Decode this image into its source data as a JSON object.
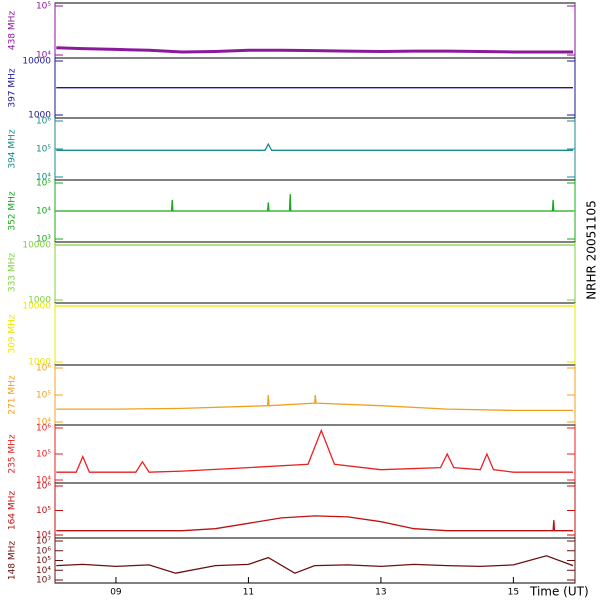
{
  "side_label": "NRHR 20051105",
  "chart_data": [
    {
      "type": "line",
      "name": "438 MHz",
      "color": "#8b1a9b",
      "log_scale": true,
      "ylim": [
        10000,
        100000
      ],
      "yticks": [
        {
          "value": 10000,
          "label": "10⁴"
        },
        {
          "value": 100000,
          "label": "10⁵"
        }
      ],
      "xlim": [
        8.08,
        15.93
      ],
      "x": [
        8.1,
        8.5,
        9,
        9.5,
        10,
        10.5,
        11,
        11.3,
        11.5,
        12,
        12.5,
        13,
        13.5,
        14,
        14.5,
        15,
        15.5,
        15.9
      ],
      "values": [
        14000,
        13500,
        13000,
        12500,
        11500,
        11800,
        12500,
        12500,
        12500,
        12300,
        12000,
        11800,
        12000,
        12000,
        11800,
        11500,
        11500,
        11500
      ]
    },
    {
      "type": "line",
      "name": "397 MHz",
      "color": "#1a1a9b",
      "log_scale": true,
      "ylim": [
        1000,
        10000
      ],
      "yticks": [
        1000,
        10000
      ],
      "xlim": [
        8.08,
        15.93
      ],
      "x": [
        8.1,
        15.9
      ],
      "values": [
        3200,
        3200
      ]
    },
    {
      "type": "line",
      "name": "394 MHz",
      "color": "#1a8b8b",
      "log_scale": true,
      "ylim": [
        10000,
        1000000
      ],
      "yticks": [
        {
          "value": 10000,
          "label": "10⁴"
        },
        {
          "value": 100000,
          "label": "10⁵"
        },
        {
          "value": 1000000,
          "label": "10⁶"
        }
      ],
      "xlim": [
        8.08,
        15.93
      ],
      "x": [
        8.1,
        9,
        10,
        11,
        11.25,
        11.3,
        11.35,
        12,
        13,
        14,
        15,
        15.9
      ],
      "values": [
        90000,
        90000,
        90000,
        90000,
        90000,
        150000,
        90000,
        90000,
        90000,
        90000,
        90000,
        90000
      ]
    },
    {
      "type": "line",
      "name": "352 MHz",
      "color": "#1aa81a",
      "log_scale": true,
      "ylim": [
        1000,
        100000
      ],
      "yticks": [
        {
          "value": 1000,
          "label": "10³"
        },
        {
          "value": 10000,
          "label": "10⁴"
        },
        {
          "value": 100000,
          "label": "10⁵"
        }
      ],
      "xlim": [
        8.08,
        15.93
      ],
      "x": [
        8.1,
        9.84,
        9.85,
        9.86,
        11.29,
        11.3,
        11.31,
        11.62,
        11.63,
        11.64,
        15.59,
        15.6,
        15.61,
        15.9
      ],
      "values": [
        10000,
        10000,
        25000,
        10000,
        10000,
        20000,
        10000,
        10000,
        40000,
        10000,
        10000,
        25000,
        10000,
        10000
      ]
    },
    {
      "type": "line",
      "name": "333 MHz",
      "color": "#7fd13b",
      "log_scale": true,
      "ylim": [
        1000,
        10000
      ],
      "yticks": [
        1000,
        10000
      ],
      "xlim": [
        8.08,
        15.93
      ],
      "x": [
        8.1,
        15.9
      ],
      "values": [
        10000,
        10000
      ]
    },
    {
      "type": "line",
      "name": "309 MHz",
      "color": "#e8e800",
      "log_scale": true,
      "ylim": [
        1000,
        10000
      ],
      "yticks": [
        1000,
        10000
      ],
      "xlim": [
        8.08,
        15.93
      ],
      "x": [
        8.1,
        15.9
      ],
      "values": [
        10000,
        10000
      ]
    },
    {
      "type": "line",
      "name": "271 MHz",
      "color": "#f0a020",
      "log_scale": true,
      "ylim": [
        10000,
        1000000
      ],
      "yticks": [
        {
          "value": 10000,
          "label": "10⁴"
        },
        {
          "value": 100000,
          "label": "10⁵"
        },
        {
          "value": 1000000,
          "label": "10⁶"
        }
      ],
      "xlim": [
        8.08,
        15.93
      ],
      "x": [
        8.1,
        9,
        10,
        11,
        11.29,
        11.3,
        11.31,
        12,
        12.01,
        12.02,
        13,
        14,
        15,
        15.9
      ],
      "values": [
        30000,
        30000,
        32000,
        38000,
        40000,
        100000,
        40000,
        50000,
        100000,
        50000,
        40000,
        30000,
        27000,
        27000
      ]
    },
    {
      "type": "line",
      "name": "235 MHz",
      "color": "#e82020",
      "log_scale": true,
      "ylim": [
        10000,
        1000000
      ],
      "yticks": [
        {
          "value": 10000,
          "label": "10⁴"
        },
        {
          "value": 100000,
          "label": "10⁵"
        },
        {
          "value": 1000000,
          "label": "10⁶"
        }
      ],
      "xlim": [
        8.08,
        15.93
      ],
      "x": [
        8.1,
        8.4,
        8.5,
        8.6,
        9.3,
        9.4,
        9.5,
        10,
        11,
        11.9,
        12.1,
        12.3,
        13,
        13.9,
        14,
        14.1,
        14.5,
        14.6,
        14.7,
        15,
        15.9
      ],
      "values": [
        20000,
        20000,
        80000,
        20000,
        20000,
        50000,
        20000,
        22000,
        30000,
        40000,
        800000,
        40000,
        25000,
        30000,
        100000,
        30000,
        25000,
        100000,
        25000,
        20000,
        20000
      ]
    },
    {
      "type": "line",
      "name": "164 MHz",
      "color": "#c01010",
      "log_scale": true,
      "ylim": [
        10000,
        1000000
      ],
      "yticks": [
        {
          "value": 10000,
          "label": "10⁴"
        },
        {
          "value": 100000,
          "label": "10⁵"
        },
        {
          "value": 1000000,
          "label": "10⁶"
        }
      ],
      "xlim": [
        8.08,
        15.93
      ],
      "x": [
        8.1,
        9,
        10,
        10.5,
        11,
        11.5,
        12,
        12.5,
        13,
        13.5,
        14,
        15,
        15.6,
        15.61,
        15.62,
        15.9
      ],
      "values": [
        15000,
        15000,
        15000,
        18000,
        30000,
        50000,
        60000,
        55000,
        35000,
        18000,
        15000,
        15000,
        15000,
        40000,
        15000,
        15000
      ]
    },
    {
      "type": "line",
      "name": "148 MHz",
      "color": "#6b1010",
      "log_scale": true,
      "ylim": [
        1000,
        10000000
      ],
      "yticks": [
        {
          "value": 1000,
          "label": "10³"
        },
        {
          "value": 10000,
          "label": "10⁴"
        },
        {
          "value": 100000,
          "label": "10⁵"
        },
        {
          "value": 1000000,
          "label": "10⁶"
        },
        {
          "value": 10000000,
          "label": "10⁷"
        }
      ],
      "xlim": [
        8.08,
        15.93
      ],
      "xticks": [
        {
          "value": 9,
          "label": "09"
        },
        {
          "value": 11,
          "label": "11"
        },
        {
          "value": 13,
          "label": "13"
        },
        {
          "value": 15,
          "label": "15"
        }
      ],
      "xlabel": "Time (UT)",
      "x": [
        8.1,
        8.5,
        9,
        9.5,
        9.9,
        10.5,
        11,
        11.3,
        11.7,
        12,
        12.5,
        13,
        13.5,
        14,
        14.5,
        15,
        15.5,
        15.9
      ],
      "values": [
        30000,
        40000,
        25000,
        35000,
        5000,
        30000,
        40000,
        200000,
        5000,
        30000,
        35000,
        25000,
        40000,
        30000,
        25000,
        35000,
        300000,
        30000
      ]
    }
  ]
}
